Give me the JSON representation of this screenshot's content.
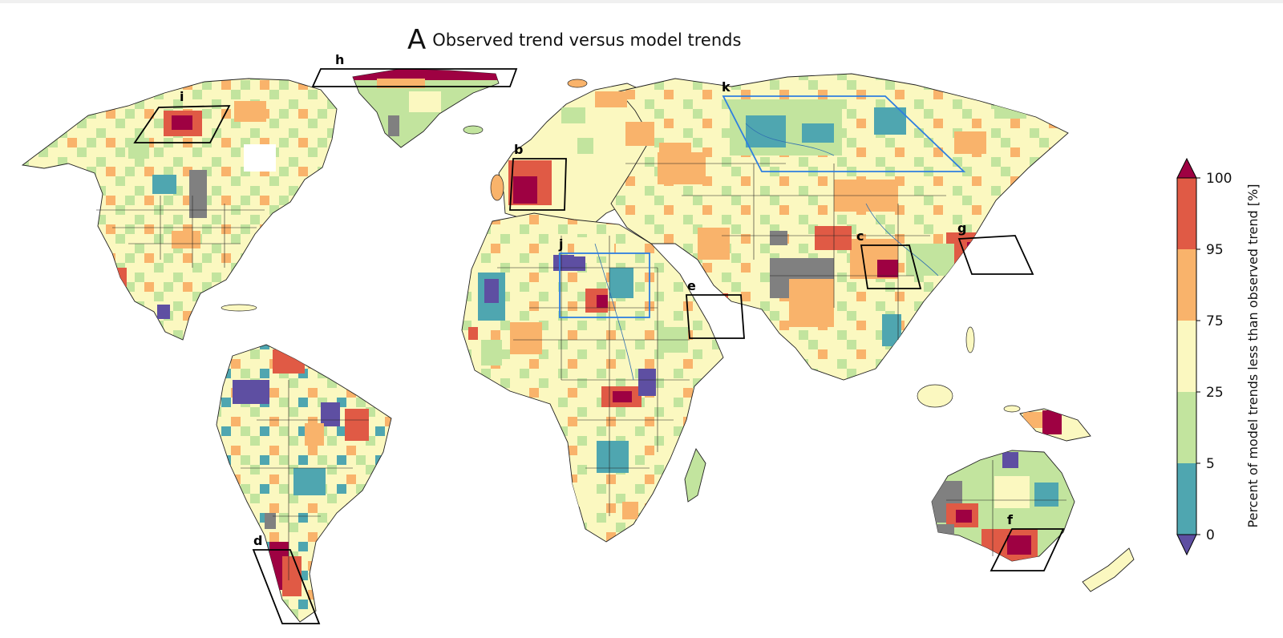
{
  "title": {
    "panel_letter": "A",
    "text": "Observed trend versus model trends"
  },
  "regions": [
    {
      "id": "h",
      "label": "h",
      "color": "black"
    },
    {
      "id": "i",
      "label": "i",
      "color": "black"
    },
    {
      "id": "k",
      "label": "k",
      "color": "blue"
    },
    {
      "id": "b",
      "label": "b",
      "color": "black"
    },
    {
      "id": "j",
      "label": "j",
      "color": "blue"
    },
    {
      "id": "e",
      "label": "e",
      "color": "black"
    },
    {
      "id": "c",
      "label": "c",
      "color": "black"
    },
    {
      "id": "g",
      "label": "g",
      "color": "black"
    },
    {
      "id": "d",
      "label": "d",
      "color": "black"
    },
    {
      "id": "f",
      "label": "f",
      "color": "black"
    }
  ],
  "colorbar": {
    "label": "Percent of model trends less than observed trend [%]",
    "ticks": [
      "0",
      "5",
      "25",
      "75",
      "95",
      "100"
    ],
    "colors": {
      "below": "#5e4fa2",
      "0-5": "#4fa6b0",
      "5-25": "#c2e49e",
      "25-75": "#fbf8c0",
      "75-95": "#f9b36b",
      "95-100": "#e05a45",
      "above": "#9e0142"
    },
    "no_data_color": "#808080"
  }
}
